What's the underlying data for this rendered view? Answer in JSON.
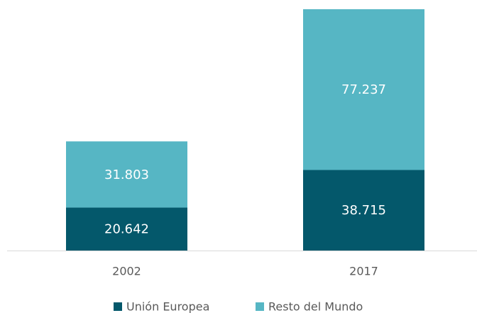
{
  "chart_data": {
    "type": "stacked_bar",
    "categories": [
      "2002",
      "2017"
    ],
    "series": [
      {
        "name": "Unión Europea",
        "color": "#04586b",
        "values": [
          20.642,
          38.715
        ]
      },
      {
        "name": "Resto del Mundo",
        "color": "#56b6c4",
        "values": [
          31.803,
          77.237
        ]
      }
    ],
    "legend": "bottom"
  }
}
